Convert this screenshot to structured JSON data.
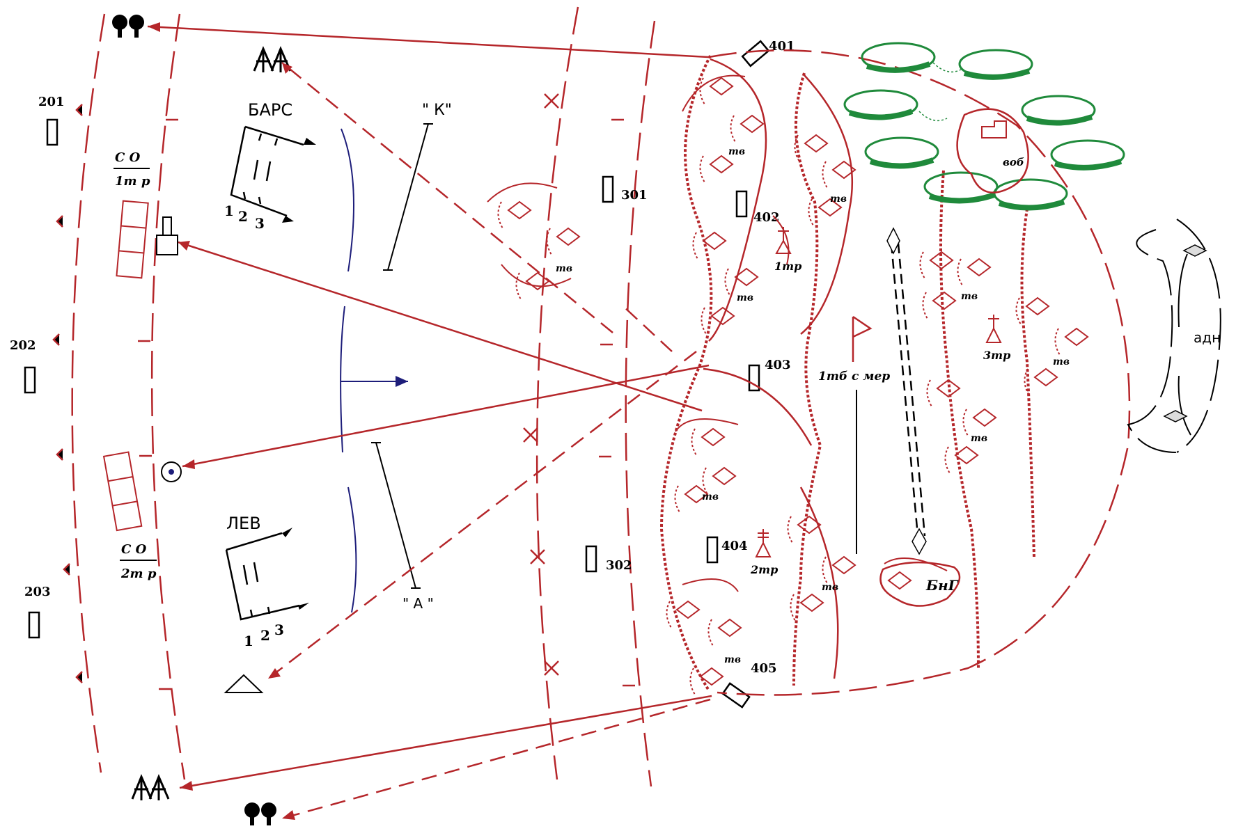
{
  "colors": {
    "enemy": "#b5262a",
    "friendly": "#1d1d7a",
    "vegetation": "#1f8a3b",
    "text": "#000000"
  },
  "positions": {
    "p201": "201",
    "p202": "202",
    "p203": "203",
    "p301": "301",
    "p302": "302",
    "p401": "401",
    "p402": "402",
    "p403": "403",
    "p404": "404",
    "p405": "405"
  },
  "units": {
    "bars": "БАРС",
    "lev": "ЛЕВ",
    "k_line": "\" К\"",
    "a_line": "\" А \"",
    "co1_top": "С О",
    "co1_bottom": "1т р",
    "co2_top": "С О",
    "co2_bottom": "2т р",
    "adn": "адн",
    "vob": "воб",
    "bng": "БнГ",
    "tb_mep": "1тб с мер",
    "tr1": "1тр",
    "tr2": "2тр",
    "tr3": "3тр",
    "tv": "тв",
    "digit1": "1",
    "digit2": "2",
    "digit3": "3"
  },
  "icons": [
    "deciduous-tree-icon",
    "conifer-tree-icon",
    "observation-post-icon",
    "command-post-icon",
    "tank-icon",
    "flag-icon",
    "triangle-landmark-icon"
  ]
}
